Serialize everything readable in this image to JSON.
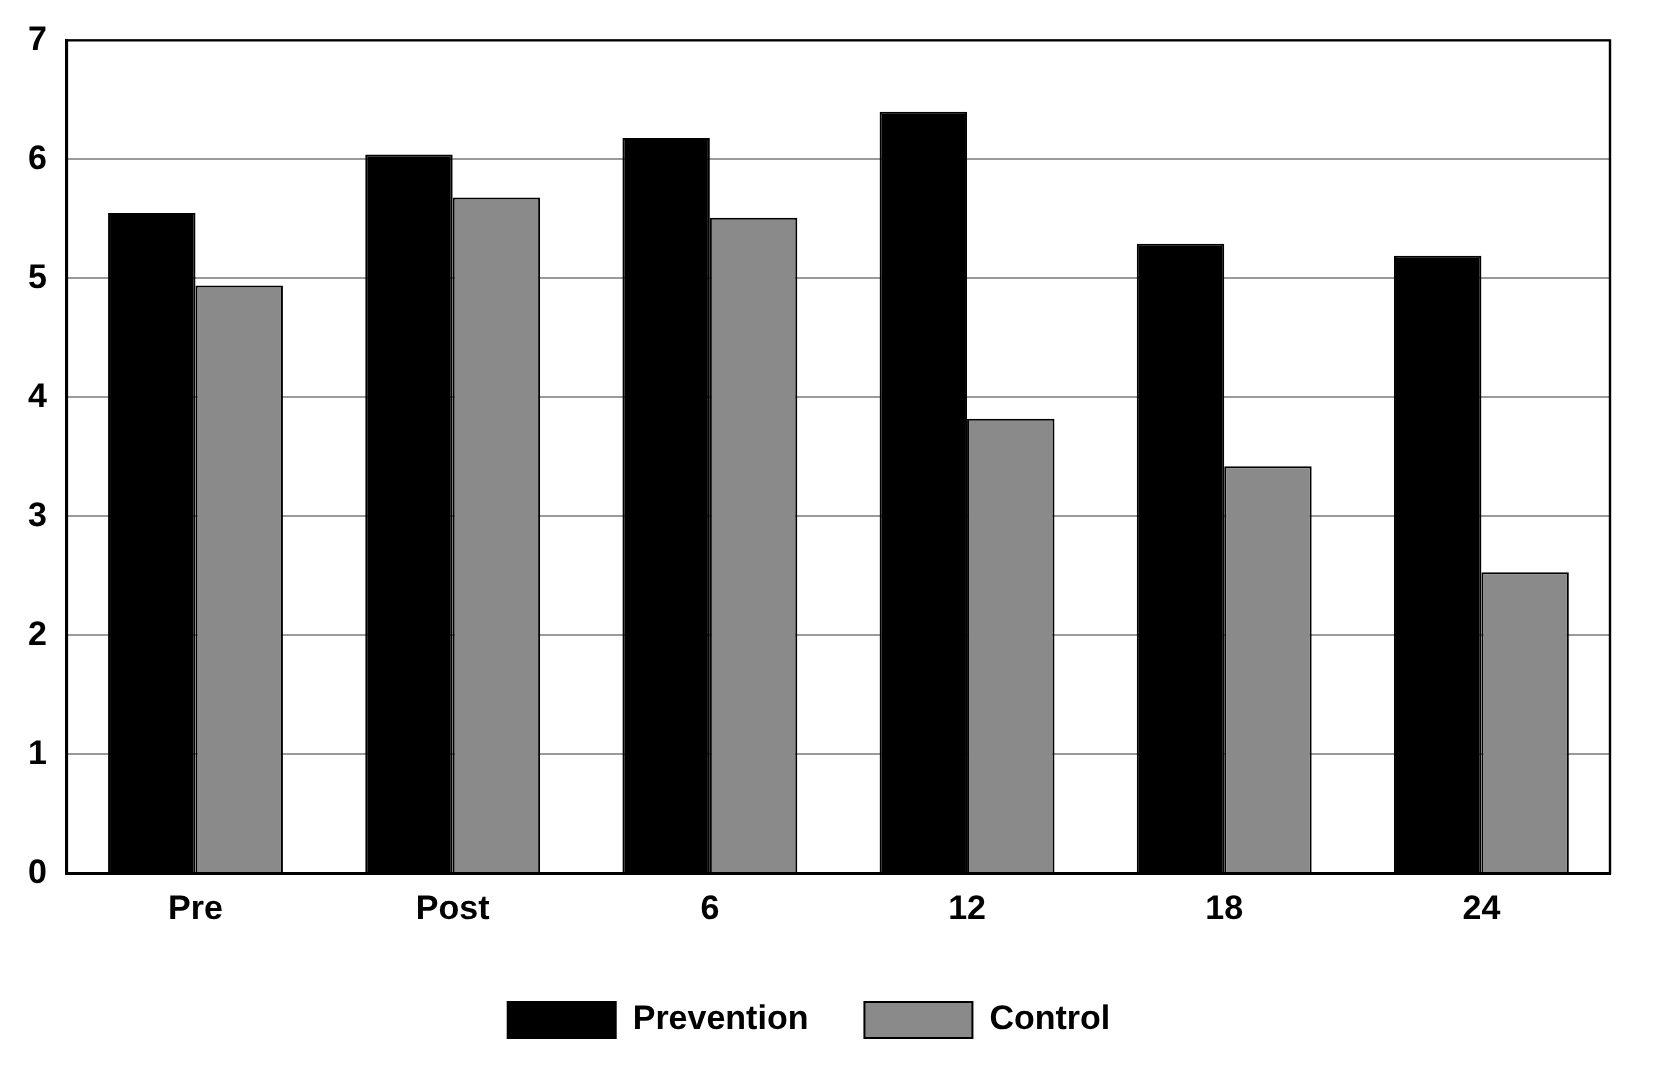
{
  "chart_data": {
    "type": "bar",
    "categories": [
      "Pre",
      "Post",
      "6",
      "12",
      "18",
      "24"
    ],
    "series": [
      {
        "name": "Prevention",
        "color": "#000000",
        "values": [
          5.55,
          6.04,
          6.18,
          6.4,
          5.29,
          5.19
        ]
      },
      {
        "name": "Control",
        "color": "#8a8a8a",
        "values": [
          4.94,
          5.68,
          5.51,
          3.82,
          3.42,
          2.53
        ]
      }
    ],
    "ylim": [
      0,
      7
    ],
    "yticks": [
      0,
      1,
      2,
      3,
      4,
      5,
      6,
      7
    ],
    "grid": "y",
    "legend": "bottom"
  }
}
